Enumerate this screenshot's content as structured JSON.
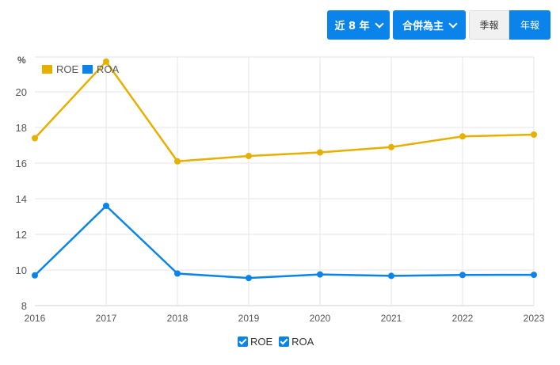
{
  "toolbar": {
    "range_label": "近 8 年",
    "scope_label": "合併為主",
    "quarterly_label": "季報",
    "annual_label": "年報"
  },
  "colors": {
    "roe": "#e6b000",
    "roa": "#0a84ea",
    "button": "#0a84ea"
  },
  "chart_data": {
    "type": "line",
    "title": "",
    "xlabel": "",
    "ylabel": "%",
    "x": [
      "2016",
      "2017",
      "2018",
      "2019",
      "2020",
      "2021",
      "2022",
      "2023"
    ],
    "series": [
      {
        "name": "ROE",
        "color": "#e6b000",
        "values": [
          17.4,
          21.7,
          16.1,
          16.4,
          16.6,
          16.9,
          17.5,
          17.6
        ]
      },
      {
        "name": "ROA",
        "color": "#0a84ea",
        "values": [
          9.7,
          13.6,
          9.8,
          9.55,
          9.75,
          9.67,
          9.72,
          9.73
        ]
      }
    ],
    "yticks": [
      "8",
      "10",
      "12",
      "14",
      "16",
      "18",
      "20"
    ],
    "ylim": [
      8,
      22
    ],
    "grid": true,
    "legend": {
      "top": [
        "ROE",
        "ROA"
      ],
      "bottom": [
        "ROE",
        "ROA"
      ],
      "position": "top-left and bottom-center"
    }
  },
  "legend": {
    "roe_label": "ROE",
    "roa_label": "ROA",
    "unit": "%"
  }
}
